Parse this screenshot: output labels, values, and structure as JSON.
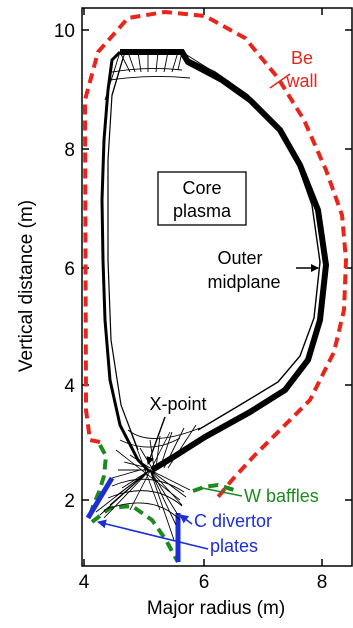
{
  "figure": {
    "xlabel": "Major radius (m)",
    "ylabel": "Vertical distance (m)",
    "x_ticks": [
      "4",
      "6",
      "8"
    ],
    "y_ticks": [
      "2",
      "4",
      "6",
      "8",
      "10"
    ]
  },
  "labels": {
    "core_line1": "Core",
    "core_line2": "plasma",
    "outer_line1": "Outer",
    "outer_line2": "midplane",
    "xpoint": "X-point",
    "be_line1": "Be",
    "be_line2": "wall",
    "baffles": "W baffles",
    "divertor_line1": "C divertor",
    "divertor_line2": "plates"
  },
  "colors": {
    "wall": "#e8251c",
    "baffles": "#1e8a1e",
    "divertor": "#1c2fd6",
    "mesh": "#000000"
  },
  "icons": {
    "outer_midplane_pointer": "arrow-right",
    "xpoint_pointer": "arrow-down",
    "divertor_pointers": "arrow-up-left"
  }
}
